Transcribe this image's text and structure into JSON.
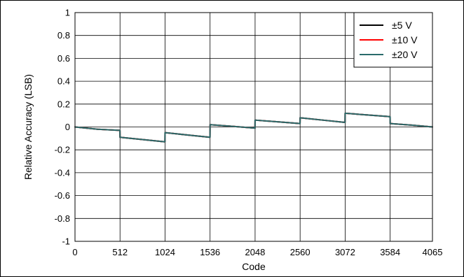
{
  "chart_data": {
    "type": "line",
    "title": "",
    "xlabel": "Code",
    "ylabel": "Relative Accuracy (LSB)",
    "xlim": [
      0,
      4065
    ],
    "ylim": [
      -1,
      1
    ],
    "xticks": [
      0,
      512,
      1024,
      1536,
      2048,
      2560,
      3072,
      3584,
      4065
    ],
    "yticks": [
      1,
      0.8,
      0.6,
      0.4,
      0.2,
      0,
      -0.2,
      -0.4,
      -0.6,
      -0.8,
      -1
    ],
    "xtick_labels": [
      "0",
      "512",
      "1024",
      "1536",
      "2048",
      "2560",
      "3072",
      "3584",
      "4065"
    ],
    "ytick_labels": [
      "1",
      "0.8",
      "0.6",
      "0.4",
      "0.2",
      "0",
      "-0.2",
      "-0.4",
      "-0.6",
      "-0.8",
      "-1"
    ],
    "grid": true,
    "legend_position": "top-right",
    "series": [
      {
        "name": "±5 V",
        "color": "#000000",
        "x": [
          0,
          256,
          511,
          512,
          768,
          1023,
          1024,
          1280,
          1535,
          1536,
          1792,
          2047,
          2048,
          2304,
          2559,
          2560,
          2816,
          3071,
          3072,
          3328,
          3583,
          3584,
          3840,
          4065
        ],
        "y": [
          0.0,
          -0.02,
          -0.03,
          -0.09,
          -0.11,
          -0.13,
          -0.05,
          -0.07,
          -0.09,
          0.02,
          0.005,
          -0.01,
          0.06,
          0.045,
          0.03,
          0.08,
          0.06,
          0.04,
          0.12,
          0.105,
          0.09,
          0.03,
          0.015,
          0.0
        ]
      },
      {
        "name": "±10 V",
        "color": "#ff0000",
        "x": [
          0,
          256,
          511,
          512,
          768,
          1023,
          1024,
          1280,
          1535,
          1536,
          1792,
          2047,
          2048,
          2304,
          2559,
          2560,
          2816,
          3071,
          3072,
          3328,
          3583,
          3584,
          3840,
          4065
        ],
        "y": [
          0.0,
          -0.02,
          -0.03,
          -0.09,
          -0.11,
          -0.13,
          -0.05,
          -0.07,
          -0.09,
          0.02,
          0.005,
          -0.01,
          0.06,
          0.045,
          0.03,
          0.08,
          0.06,
          0.04,
          0.12,
          0.105,
          0.09,
          0.03,
          0.015,
          0.0
        ]
      },
      {
        "name": "±20 V",
        "color": "#2a6b6b",
        "x": [
          0,
          256,
          511,
          512,
          768,
          1023,
          1024,
          1280,
          1535,
          1536,
          1792,
          2047,
          2048,
          2304,
          2559,
          2560,
          2816,
          3071,
          3072,
          3328,
          3583,
          3584,
          3840,
          4065
        ],
        "y": [
          0.0,
          -0.02,
          -0.03,
          -0.09,
          -0.11,
          -0.13,
          -0.05,
          -0.07,
          -0.09,
          0.02,
          0.005,
          -0.01,
          0.06,
          0.045,
          0.03,
          0.08,
          0.06,
          0.04,
          0.12,
          0.105,
          0.09,
          0.03,
          0.015,
          0.0
        ]
      }
    ]
  }
}
